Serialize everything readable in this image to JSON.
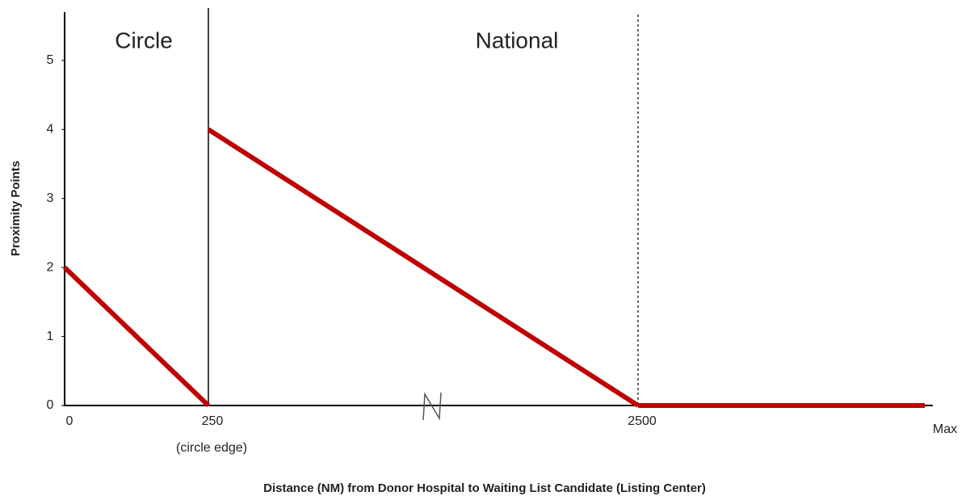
{
  "chart_data": {
    "type": "line",
    "x_label": "Distance (NM) from Donor Hospital to Waiting List Candidate (Listing Center)",
    "y_label": "Proximity Points",
    "categories": [
      "0",
      "250",
      "2500",
      "Max"
    ],
    "series": [
      {
        "color": "#c00000",
        "values": [
          2,
          0,
          null,
          null
        ]
      },
      {
        "color": "#c00000",
        "values": [
          null,
          4,
          0,
          null
        ]
      },
      {
        "color": "#c00000",
        "values": [
          null,
          null,
          0,
          0
        ]
      }
    ],
    "ylim": [
      0,
      5.7
    ],
    "yticks": [
      0,
      1,
      2,
      3,
      4,
      5
    ],
    "annotations": [
      {
        "text": "Circle"
      },
      {
        "text": "National"
      },
      {
        "text": "(circle edge)"
      }
    ]
  }
}
